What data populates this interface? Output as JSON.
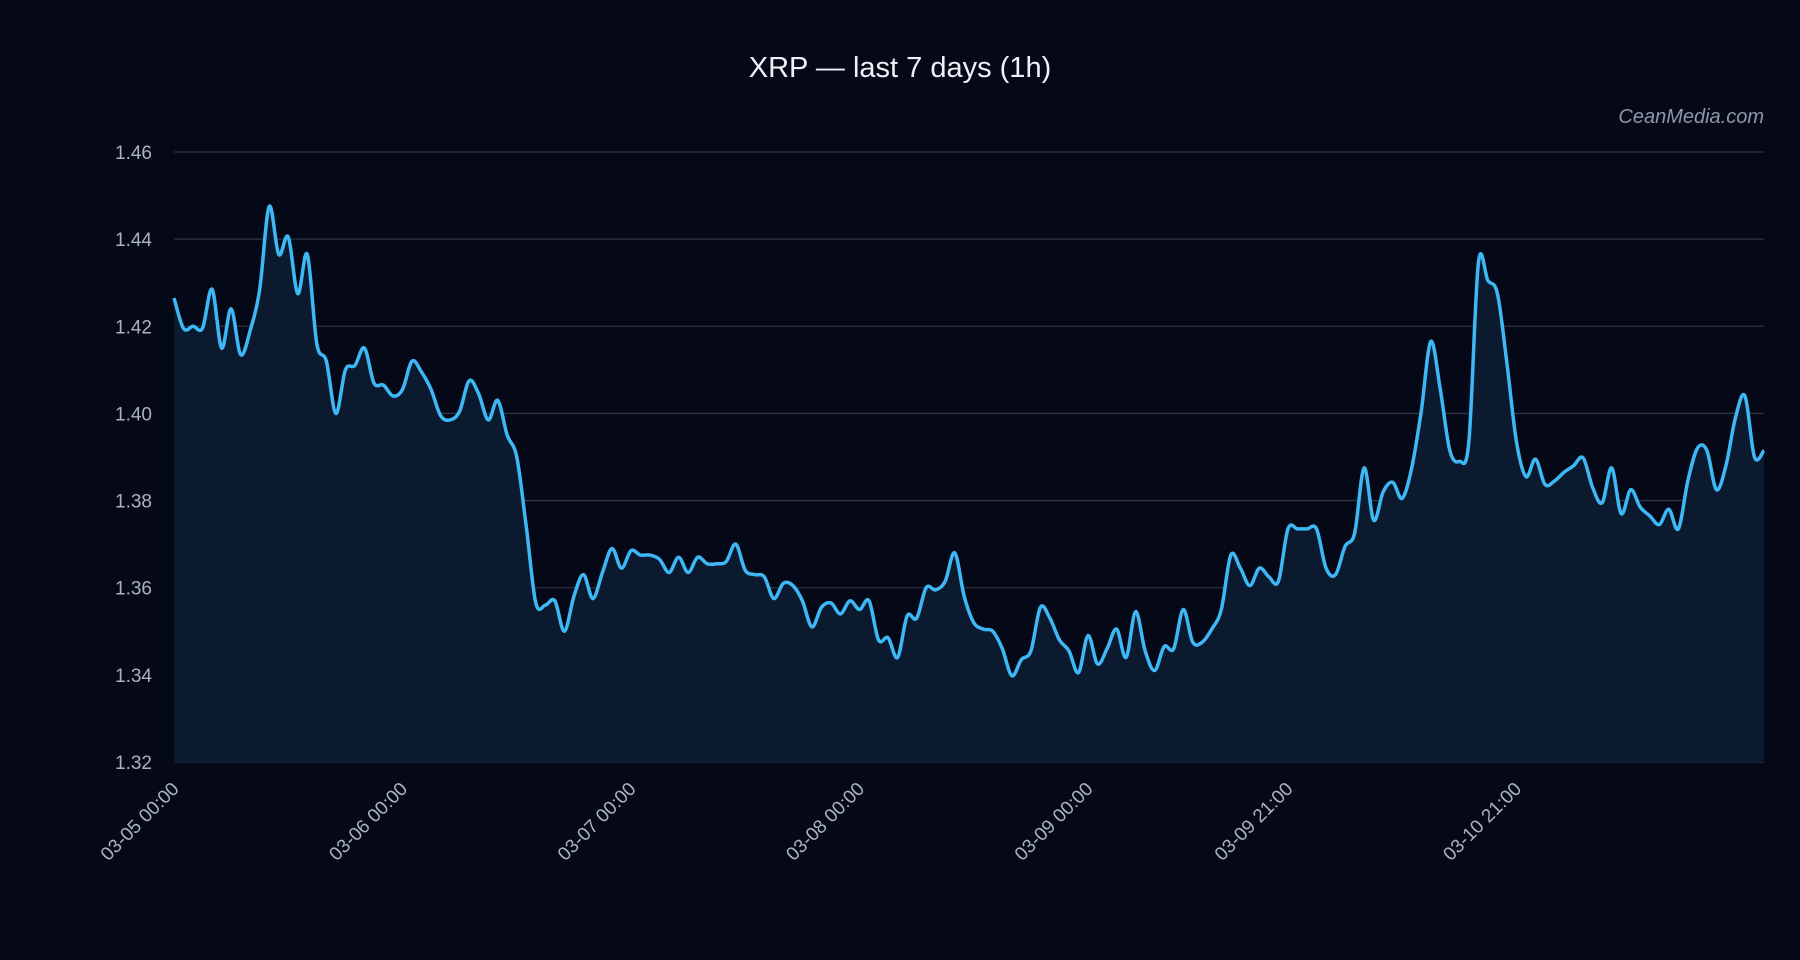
{
  "chart_data": {
    "type": "area",
    "title": "XRP — last 7 days (1h)",
    "watermark": "CeanMedia.com",
    "ylim": [
      1.32,
      1.46
    ],
    "yticks": [
      "1.32",
      "1.34",
      "1.36",
      "1.38",
      "1.40",
      "1.42",
      "1.44",
      "1.46"
    ],
    "x_range": [
      "03-05 00:00",
      "03-11 23:00"
    ],
    "xticks": [
      "03-05 00:00",
      "03-06 00:00",
      "03-07 00:00",
      "03-08 00:00",
      "03-09 00:00",
      "03-09 21:00",
      "03-10 21:00"
    ],
    "grid": true,
    "colors": {
      "line": "#3db8f5",
      "fill": "#0b1a2e",
      "grid": "#2b3444",
      "background": "#040817"
    },
    "series": [
      {
        "values": [
          1.4265,
          1.4195,
          1.42,
          1.4196,
          1.4285,
          1.415,
          1.424,
          1.4135,
          1.419,
          1.4285,
          1.4475,
          1.4365,
          1.4405,
          1.4275,
          1.4365,
          1.416,
          1.412,
          1.4,
          1.41,
          1.411,
          1.415,
          1.407,
          1.4065,
          1.404,
          1.4055,
          1.412,
          1.4095,
          1.4055,
          1.3995,
          1.3985,
          1.4005,
          1.4075,
          1.4045,
          1.3985,
          1.403,
          1.395,
          1.39,
          1.374,
          1.3565,
          1.356,
          1.357,
          1.35,
          1.358,
          1.363,
          1.3575,
          1.3635,
          1.369,
          1.3645,
          1.3685,
          1.3675,
          1.3675,
          1.3665,
          1.3635,
          1.367,
          1.3635,
          1.367,
          1.3655,
          1.3655,
          1.366,
          1.37,
          1.364,
          1.363,
          1.3625,
          1.3575,
          1.361,
          1.3605,
          1.357,
          1.351,
          1.3555,
          1.3565,
          1.354,
          1.357,
          1.355,
          1.357,
          1.348,
          1.3485,
          1.344,
          1.3535,
          1.353,
          1.36,
          1.3595,
          1.3615,
          1.368,
          1.358,
          1.352,
          1.3505,
          1.35,
          1.346,
          1.3398,
          1.3435,
          1.3455,
          1.3555,
          1.353,
          1.348,
          1.3455,
          1.3405,
          1.349,
          1.3425,
          1.346,
          1.3505,
          1.344,
          1.3545,
          1.3455,
          1.341,
          1.3465,
          1.346,
          1.355,
          1.3475,
          1.3475,
          1.3505,
          1.355,
          1.3675,
          1.3645,
          1.3605,
          1.3645,
          1.3625,
          1.3615,
          1.3735,
          1.3735,
          1.3735,
          1.3735,
          1.3645,
          1.363,
          1.3695,
          1.3725,
          1.3875,
          1.3755,
          1.382,
          1.3842,
          1.3805,
          1.3875,
          1.4005,
          1.4165,
          1.4055,
          1.3915,
          1.389,
          1.3935,
          1.4345,
          1.4305,
          1.4275,
          1.4115,
          1.3935,
          1.3855,
          1.3895,
          1.3837,
          1.3845,
          1.3865,
          1.388,
          1.3898,
          1.383,
          1.3795,
          1.3875,
          1.377,
          1.3825,
          1.3785,
          1.3765,
          1.3745,
          1.378,
          1.3735,
          1.3845,
          1.392,
          1.3915,
          1.3825,
          1.388,
          1.399,
          1.404,
          1.39,
          1.3915
        ]
      }
    ]
  }
}
